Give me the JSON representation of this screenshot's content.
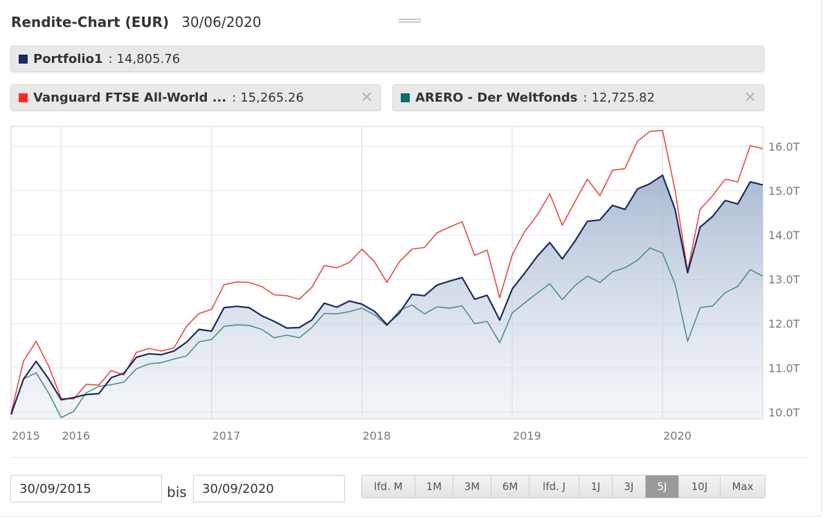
{
  "header": {
    "title": "Rendite-Chart (EUR)",
    "date": "30/06/2020"
  },
  "legend": [
    {
      "name": "Portfolio1",
      "value": "14,805.76",
      "color": "#1a2a5e",
      "closable": false
    },
    {
      "name": "Vanguard FTSE All-World ...",
      "value": "15,265.26",
      "color": "#ff2a1a",
      "closable": true
    },
    {
      "name": "ARERO - Der Weltfonds",
      "value": "12,725.82",
      "color": "#0e6b6b",
      "closable": true
    }
  ],
  "chart_data": {
    "type": "line",
    "x": [
      "2015-09",
      "2015-10",
      "2015-11",
      "2015-12",
      "2016-01",
      "2016-02",
      "2016-03",
      "2016-04",
      "2016-05",
      "2016-06",
      "2016-07",
      "2016-08",
      "2016-09",
      "2016-10",
      "2016-11",
      "2016-12",
      "2017-01",
      "2017-02",
      "2017-03",
      "2017-04",
      "2017-05",
      "2017-06",
      "2017-07",
      "2017-08",
      "2017-09",
      "2017-10",
      "2017-11",
      "2017-12",
      "2018-01",
      "2018-02",
      "2018-03",
      "2018-04",
      "2018-05",
      "2018-06",
      "2018-07",
      "2018-08",
      "2018-09",
      "2018-10",
      "2018-11",
      "2018-12",
      "2019-01",
      "2019-02",
      "2019-03",
      "2019-04",
      "2019-05",
      "2019-06",
      "2019-07",
      "2019-08",
      "2019-09",
      "2019-10",
      "2019-11",
      "2019-12",
      "2020-01",
      "2020-02",
      "2020-03",
      "2020-04",
      "2020-05",
      "2020-06",
      "2020-07",
      "2020-08",
      "2020-09"
    ],
    "series": [
      {
        "name": "Portfolio1",
        "color": "#1a2a5e",
        "fill": true,
        "values": [
          9950,
          10750,
          11150,
          10750,
          10280,
          10330,
          10400,
          10420,
          10780,
          10880,
          11240,
          11320,
          11300,
          11380,
          11580,
          11870,
          11830,
          12360,
          12390,
          12360,
          12180,
          12050,
          11900,
          11910,
          12080,
          12460,
          12370,
          12510,
          12440,
          12280,
          11980,
          12240,
          12660,
          12630,
          12870,
          12960,
          13040,
          12550,
          12640,
          12080,
          12780,
          13140,
          13520,
          13830,
          13460,
          13860,
          14310,
          14340,
          14670,
          14580,
          15040,
          15160,
          15350,
          14580,
          13150,
          14180,
          14420,
          14780,
          14700,
          15200,
          15130
        ]
      },
      {
        "name": "Vanguard FTSE All-World ...",
        "color": "#e8473a",
        "fill": false,
        "values": [
          9980,
          11160,
          11600,
          11040,
          10310,
          10300,
          10630,
          10610,
          10940,
          10840,
          11350,
          11440,
          11380,
          11450,
          11940,
          12230,
          12320,
          12880,
          12940,
          12930,
          12840,
          12650,
          12630,
          12550,
          12820,
          13310,
          13260,
          13380,
          13680,
          13400,
          12930,
          13400,
          13680,
          13720,
          14050,
          14180,
          14300,
          13540,
          13660,
          12580,
          13550,
          14080,
          14450,
          14930,
          14220,
          14750,
          15260,
          14890,
          15460,
          15500,
          16120,
          16340,
          16360,
          15010,
          13190,
          14580,
          14890,
          15260,
          15200,
          16020,
          15950
        ]
      },
      {
        "name": "ARERO - Der Weltfonds",
        "color": "#4a8f88",
        "fill": false,
        "values": [
          9960,
          10750,
          10890,
          10430,
          9880,
          10020,
          10440,
          10580,
          10620,
          10680,
          10980,
          11090,
          11120,
          11200,
          11270,
          11590,
          11640,
          11940,
          11970,
          11960,
          11870,
          11680,
          11740,
          11680,
          11910,
          12230,
          12220,
          12270,
          12350,
          12200,
          11950,
          12300,
          12420,
          12220,
          12380,
          12350,
          12400,
          12000,
          12050,
          11570,
          12240,
          12470,
          12690,
          12900,
          12540,
          12860,
          13070,
          12930,
          13170,
          13260,
          13430,
          13710,
          13590,
          12890,
          11600,
          12360,
          12400,
          12700,
          12840,
          13220,
          13070
        ]
      }
    ],
    "x_tick_labels": [
      "2015",
      "2016",
      "2017",
      "2018",
      "2019",
      "2020"
    ],
    "y_tick_labels": [
      "10.0T",
      "11.0T",
      "12.0T",
      "13.0T",
      "14.0T",
      "15.0T",
      "16.0T"
    ],
    "y_ticks": [
      10000,
      11000,
      12000,
      13000,
      14000,
      15000,
      16000
    ],
    "ylim": [
      9850,
      16450
    ],
    "grid": true
  },
  "controls": {
    "from_date": "30/09/2015",
    "to_label": "bis",
    "to_date": "30/09/2020",
    "ranges": [
      {
        "label": "lfd. M",
        "active": false
      },
      {
        "label": "1M",
        "active": false
      },
      {
        "label": "3M",
        "active": false
      },
      {
        "label": "6M",
        "active": false
      },
      {
        "label": "lfd. J",
        "active": false
      },
      {
        "label": "1J",
        "active": false
      },
      {
        "label": "3J",
        "active": false
      },
      {
        "label": "5J",
        "active": true
      },
      {
        "label": "10J",
        "active": false
      },
      {
        "label": "Max",
        "active": false
      }
    ]
  }
}
